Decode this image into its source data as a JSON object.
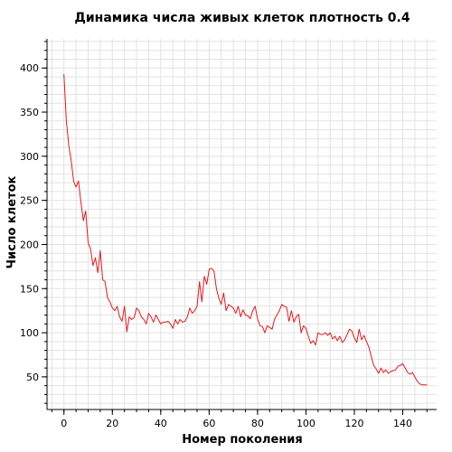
{
  "chart_data": {
    "type": "line",
    "title": "Динамика числа живых клеток плотность 0.4",
    "xlabel": "Номер поколения",
    "ylabel": "Число клеток",
    "xlim": [
      -7,
      154
    ],
    "ylim": [
      13,
      433
    ],
    "x_ticks": [
      0,
      20,
      40,
      60,
      80,
      100,
      120,
      140
    ],
    "y_ticks": [
      50,
      100,
      150,
      200,
      250,
      300,
      350,
      400
    ],
    "x_minor_step": 5,
    "y_minor_step": 10,
    "grid": true,
    "legend": "none",
    "colors": {
      "line": "#e8191c",
      "grid": "#e2e2e2",
      "axis": "#000000"
    },
    "series": [
      {
        "x": [
          0,
          1,
          2,
          3,
          4,
          5,
          6,
          7,
          8,
          9,
          10,
          11,
          12,
          13,
          14,
          15,
          16,
          17,
          18,
          19,
          20,
          21,
          22,
          23,
          24,
          25,
          26,
          27,
          28,
          29,
          30,
          31,
          32,
          33,
          34,
          35,
          36,
          37,
          38,
          39,
          40,
          41,
          42,
          43,
          44,
          45,
          46,
          47,
          48,
          49,
          50,
          51,
          52,
          53,
          54,
          55,
          56,
          57,
          58,
          59,
          60,
          61,
          62,
          63,
          64,
          65,
          66,
          67,
          68,
          69,
          70,
          71,
          72,
          73,
          74,
          75,
          76,
          77,
          78,
          79,
          80,
          81,
          82,
          83,
          84,
          85,
          86,
          87,
          88,
          89,
          90,
          91,
          92,
          93,
          94,
          95,
          96,
          97,
          98,
          99,
          100,
          101,
          102,
          103,
          104,
          105,
          106,
          107,
          108,
          109,
          110,
          111,
          112,
          113,
          114,
          115,
          116,
          117,
          118,
          119,
          120,
          121,
          122,
          123,
          124,
          125,
          126,
          127,
          128,
          129,
          130,
          131,
          132,
          133,
          134,
          135,
          136,
          137,
          138,
          139,
          140,
          141,
          142,
          143,
          144,
          145,
          146,
          147,
          148,
          149,
          150
        ],
        "y": [
          393,
          340,
          312,
          295,
          272,
          265,
          272,
          248,
          227,
          238,
          202,
          195,
          176,
          185,
          168,
          193,
          160,
          158,
          140,
          135,
          128,
          125,
          130,
          118,
          113,
          130,
          101,
          118,
          115,
          117,
          128,
          125,
          118,
          115,
          110,
          122,
          118,
          112,
          120,
          115,
          110,
          112,
          112,
          113,
          110,
          105,
          115,
          110,
          115,
          112,
          113,
          118,
          128,
          122,
          125,
          130,
          158,
          135,
          164,
          155,
          172,
          173,
          170,
          150,
          139,
          132,
          145,
          125,
          132,
          130,
          128,
          122,
          130,
          118,
          126,
          120,
          119,
          116,
          125,
          130,
          116,
          108,
          107,
          100,
          108,
          106,
          104,
          115,
          120,
          125,
          132,
          130,
          129,
          113,
          125,
          112,
          118,
          121,
          100,
          108,
          105,
          96,
          88,
          91,
          86,
          100,
          98,
          98,
          100,
          97,
          100,
          93,
          96,
          91,
          96,
          89,
          92,
          98,
          104,
          102,
          94,
          89,
          104,
          92,
          97,
          90,
          84,
          73,
          63,
          59,
          54,
          60,
          55,
          58,
          54,
          56,
          57,
          58,
          62,
          63,
          65,
          60,
          55,
          53,
          55,
          50,
          45,
          42,
          41,
          41,
          41
        ]
      }
    ]
  }
}
